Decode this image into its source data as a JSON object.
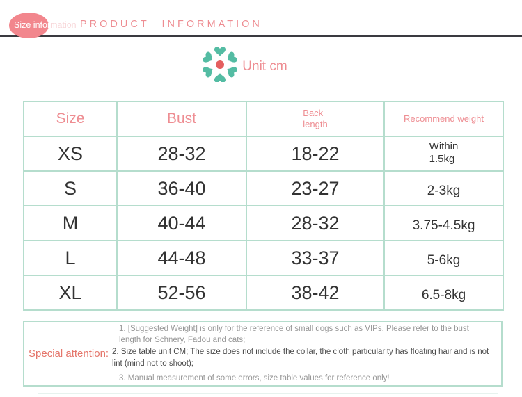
{
  "theme": {
    "pink": "#ee8d92",
    "salmon-badge": "#f2868d",
    "teal": "#b5ddcd",
    "petal": "#54bca3",
    "flower-center": "#e45f5f",
    "dark-text": "#333333",
    "note-gray": "#979797",
    "note-dark": "#4a4a4a",
    "attention": "#e5766b",
    "dark-line": "#3a3a40"
  },
  "badge": {
    "label_on": "Size infor",
    "label_off": "mation"
  },
  "header": {
    "title": "PRODUCT INFORMATION"
  },
  "unit": {
    "label": "Unit cm"
  },
  "table": {
    "headers": [
      "Size",
      "Bust",
      "Back\nlength",
      "Recommend weight"
    ],
    "rows": [
      [
        "XS",
        "28-32",
        "18-22",
        "Within\n1.5kg"
      ],
      [
        "S",
        "36-40",
        "23-27",
        "2-3kg"
      ],
      [
        "M",
        "40-44",
        "28-32",
        "3.75-4.5kg"
      ],
      [
        "L",
        "44-48",
        "33-37",
        "5-6kg"
      ],
      [
        "XL",
        "52-56",
        "38-42",
        "6.5-8kg"
      ]
    ]
  },
  "notes": {
    "label": "Special attention:",
    "items": [
      "1. [Suggested Weight] is only for the reference of small dogs such as VIPs. Please refer to the bust length for Schnery, Fadou and cats;",
      "2. Size table unit CM; The size does not include the collar, the cloth particularity has floating hair and is not lint (mind not to shoot);",
      "3. Manual measurement of some errors, size table values for reference only!"
    ]
  }
}
